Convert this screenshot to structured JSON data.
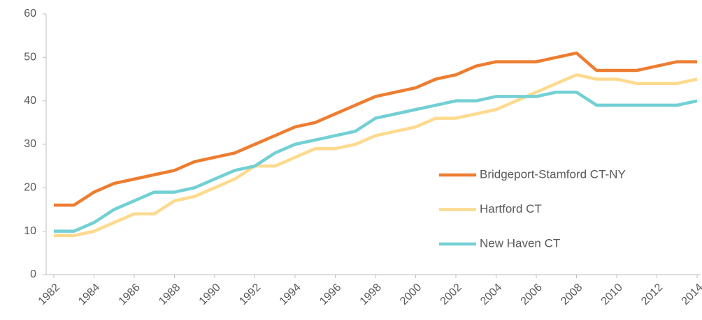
{
  "chart_data": {
    "type": "line",
    "x": [
      1982,
      1983,
      1984,
      1985,
      1986,
      1987,
      1988,
      1989,
      1990,
      1991,
      1992,
      1993,
      1994,
      1995,
      1996,
      1997,
      1998,
      1999,
      2000,
      2001,
      2002,
      2003,
      2004,
      2005,
      2006,
      2007,
      2008,
      2009,
      2010,
      2011,
      2012,
      2013,
      2014
    ],
    "series": [
      {
        "name": "Bridgeport-Stamford CT-NY",
        "color": "#ed7d31",
        "values": [
          16,
          16,
          19,
          21,
          22,
          23,
          24,
          26,
          27,
          28,
          30,
          32,
          34,
          35,
          37,
          39,
          41,
          42,
          43,
          45,
          46,
          48,
          49,
          49,
          49,
          50,
          51,
          47,
          47,
          47,
          48,
          49,
          49
        ]
      },
      {
        "name": "Hartford CT",
        "color": "#fdda8e",
        "values": [
          9,
          9,
          10,
          12,
          14,
          14,
          17,
          18,
          20,
          22,
          25,
          25,
          27,
          29,
          29,
          30,
          32,
          33,
          34,
          36,
          36,
          37,
          38,
          40,
          42,
          44,
          46,
          45,
          45,
          44,
          44,
          44,
          45
        ]
      },
      {
        "name": "New Haven CT",
        "color": "#72d0d4",
        "values": [
          10,
          10,
          12,
          15,
          17,
          19,
          19,
          20,
          22,
          24,
          25,
          28,
          30,
          31,
          32,
          33,
          36,
          37,
          38,
          39,
          40,
          40,
          41,
          41,
          41,
          42,
          42,
          39,
          39,
          39,
          39,
          39,
          40
        ]
      }
    ],
    "xlim": [
      1982,
      2014
    ],
    "xticks": [
      1982,
      1984,
      1986,
      1988,
      1990,
      1992,
      1994,
      1996,
      1998,
      2000,
      2002,
      2004,
      2006,
      2008,
      2010,
      2012,
      2014
    ],
    "ylim": [
      0,
      60
    ],
    "yticks": [
      0,
      10,
      20,
      30,
      40,
      50,
      60
    ],
    "grid": false,
    "legend": "right"
  }
}
